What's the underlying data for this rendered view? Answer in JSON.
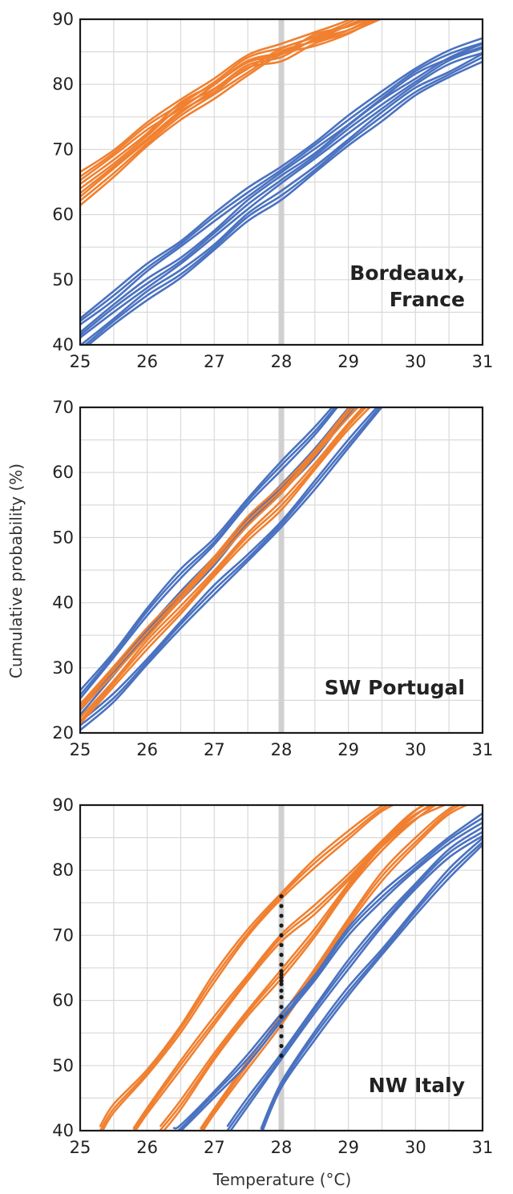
{
  "colors": {
    "orange": "#f08030",
    "blue": "#4a72c0",
    "grid": "#d9d9d9",
    "ref_line": "#d0d0d0",
    "dots": "#1a1a1a",
    "frame": "#1a1a1a"
  },
  "labels": {
    "ylabel": "Cumulative probability (%)",
    "xlabel": "Temperature (°C)"
  },
  "chart_data": [
    {
      "type": "line",
      "region_label": [
        "Bordeaux,",
        "France"
      ],
      "xlim": [
        25,
        31
      ],
      "ylim": [
        40,
        90
      ],
      "xticks": [
        25,
        26,
        27,
        28,
        29,
        30,
        31
      ],
      "yticks": [
        40,
        50,
        60,
        70,
        80,
        90
      ],
      "reference_x": 28,
      "grid": true,
      "series": [
        {
          "color": "orange",
          "x": [
            25,
            25.5,
            26,
            26.5,
            27,
            27.5,
            28,
            28.5,
            29,
            29.5
          ],
          "y": [
            62.0,
            66.5,
            71.0,
            75.0,
            78.5,
            82.0,
            85.0,
            86.5,
            88.5,
            91.0
          ]
        },
        {
          "color": "orange",
          "x": [
            25,
            25.5,
            26,
            26.5,
            27,
            27.5,
            28,
            28.5,
            29,
            29.5
          ],
          "y": [
            64.0,
            68.0,
            72.0,
            76.5,
            79.5,
            83.0,
            84.0,
            87.0,
            88.5,
            90.5
          ]
        },
        {
          "color": "orange",
          "x": [
            25,
            25.5,
            26,
            26.5,
            27,
            27.5,
            28,
            28.5,
            29,
            29.5
          ],
          "y": [
            66.0,
            69.5,
            73.5,
            77.0,
            80.5,
            84.0,
            85.5,
            87.5,
            89.5,
            92.0
          ]
        },
        {
          "color": "blue",
          "x": [
            25,
            25.5,
            26,
            26.5,
            27,
            27.5,
            28,
            28.5,
            29,
            29.5,
            30,
            30.5,
            31
          ],
          "y": [
            39.5,
            43.5,
            47.5,
            51.0,
            55.0,
            59.5,
            63.0,
            67.0,
            71.0,
            75.0,
            79.0,
            81.5,
            84.0
          ]
        },
        {
          "color": "blue",
          "x": [
            25,
            25.5,
            26,
            26.5,
            27,
            27.5,
            28,
            28.5,
            29,
            29.5,
            30,
            30.5,
            31
          ],
          "y": [
            41.5,
            45.5,
            49.5,
            53.0,
            57.0,
            61.5,
            65.5,
            69.0,
            73.0,
            77.0,
            80.5,
            83.5,
            85.5
          ]
        },
        {
          "color": "blue",
          "x": [
            25,
            25.5,
            26,
            26.5,
            27,
            27.5,
            28,
            28.5,
            29,
            29.5,
            30,
            30.5,
            31
          ],
          "y": [
            43.5,
            47.5,
            52.0,
            55.5,
            59.5,
            63.5,
            67.0,
            70.5,
            74.5,
            78.5,
            82.0,
            84.5,
            86.5
          ]
        }
      ]
    },
    {
      "type": "line",
      "region_label": [
        "SW Portugal"
      ],
      "xlim": [
        25,
        31
      ],
      "ylim": [
        20,
        70
      ],
      "xticks": [
        25,
        26,
        27,
        28,
        29,
        30,
        31
      ],
      "yticks": [
        20,
        30,
        40,
        50,
        60,
        70
      ],
      "reference_x": 28,
      "grid": true,
      "series": [
        {
          "color": "blue",
          "x": [
            25,
            25.5,
            26,
            26.5,
            27,
            27.5,
            28,
            28.5,
            29,
            29.5
          ],
          "y": [
            21.0,
            25.5,
            31.0,
            36.5,
            42.0,
            47.0,
            52.0,
            58.0,
            64.5,
            70.5
          ]
        },
        {
          "color": "blue",
          "x": [
            25,
            25.5,
            26,
            26.5,
            27,
            27.5,
            28,
            28.5,
            29,
            29.5
          ],
          "y": [
            23.5,
            29.5,
            35.5,
            41.0,
            46.5,
            52.5,
            57.5,
            63.0,
            69.5,
            75.0
          ]
        },
        {
          "color": "blue",
          "x": [
            25,
            25.5,
            26,
            26.5,
            27,
            27.5,
            28,
            28.5,
            29,
            29.5
          ],
          "y": [
            26.0,
            32.0,
            38.5,
            44.5,
            49.5,
            55.5,
            61.0,
            66.5,
            72.5,
            78.0
          ]
        },
        {
          "color": "orange",
          "x": [
            25,
            25.5,
            26,
            26.5,
            27,
            27.5,
            28,
            28.5,
            29,
            29.5
          ],
          "y": [
            22.0,
            27.5,
            33.5,
            39.0,
            44.5,
            50.0,
            55.0,
            61.0,
            67.0,
            72.5
          ]
        },
        {
          "color": "orange",
          "x": [
            25,
            25.5,
            26,
            26.5,
            27,
            27.5,
            28,
            28.5,
            29,
            29.5
          ],
          "y": [
            24.0,
            29.5,
            35.5,
            41.0,
            46.5,
            52.5,
            57.5,
            63.0,
            69.0,
            74.5
          ]
        }
      ]
    },
    {
      "type": "line",
      "region_label": [
        "NW Italy"
      ],
      "xlim": [
        25,
        31
      ],
      "ylim": [
        40,
        90
      ],
      "xticks": [
        25,
        26,
        27,
        28,
        29,
        30,
        31
      ],
      "yticks": [
        40,
        50,
        60,
        70,
        80,
        90
      ],
      "reference_x": 28,
      "grid": true,
      "series": [
        {
          "color": "orange",
          "x": [
            25.3,
            25.5,
            26,
            26.5,
            27,
            27.5,
            28,
            28.5,
            29,
            29.5,
            30
          ],
          "y": [
            40.0,
            43.5,
            49.0,
            55.5,
            63.5,
            70.5,
            76.0,
            81.0,
            85.5,
            89.5,
            92.0
          ]
        },
        {
          "color": "orange",
          "x": [
            25.8,
            26,
            26.5,
            27,
            27.5,
            28,
            28.5,
            29,
            29.5,
            30,
            30.5
          ],
          "y": [
            40.0,
            43.0,
            50.0,
            57.0,
            63.5,
            69.5,
            74.0,
            79.0,
            84.0,
            88.5,
            91.0
          ]
        },
        {
          "color": "orange",
          "x": [
            26.2,
            26.5,
            27,
            27.5,
            28,
            28.5,
            29,
            29.5,
            30,
            30.5
          ],
          "y": [
            40.0,
            44.0,
            51.5,
            58.0,
            64.0,
            70.5,
            77.5,
            83.5,
            88.5,
            92.0
          ]
        },
        {
          "color": "orange",
          "x": [
            26.8,
            27,
            27.5,
            28,
            28.5,
            29,
            29.5,
            30,
            30.5,
            31
          ],
          "y": [
            40.0,
            43.0,
            50.0,
            57.0,
            64.5,
            72.0,
            79.0,
            84.5,
            89.0,
            91.5
          ]
        },
        {
          "color": "blue",
          "x": [
            26.4,
            26.5,
            27,
            27.5,
            28,
            28.5,
            29,
            29.5,
            30,
            30.5,
            31
          ],
          "y": [
            40.0,
            40.5,
            45.5,
            51.0,
            57.5,
            63.5,
            70.5,
            76.0,
            80.5,
            84.5,
            88.0
          ]
        },
        {
          "color": "blue",
          "x": [
            27.2,
            27.5,
            28,
            28.5,
            29,
            29.5,
            30,
            30.5,
            31
          ],
          "y": [
            40.0,
            44.5,
            51.5,
            58.5,
            65.5,
            72.0,
            77.5,
            82.5,
            86.0
          ]
        },
        {
          "color": "blue",
          "x": [
            27.7,
            28,
            28.5,
            29,
            29.5,
            30,
            30.5,
            31
          ],
          "y": [
            40.0,
            47.0,
            54.5,
            61.5,
            67.5,
            73.5,
            79.5,
            84.5
          ]
        }
      ],
      "dots": {
        "x": 28,
        "y": [
          51.5,
          53.0,
          54.5,
          56.0,
          57.5,
          59.0,
          60.5,
          61.5,
          62.5,
          63.0,
          63.5,
          64.0,
          64.5,
          65.5,
          67.0,
          68.5,
          70.0,
          71.5,
          73.0,
          74.5,
          76.0
        ]
      }
    }
  ]
}
